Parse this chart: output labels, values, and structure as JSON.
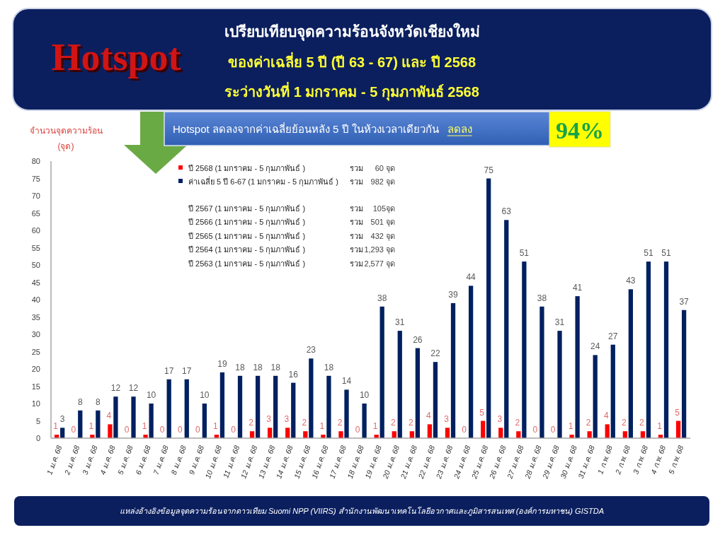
{
  "chart_data": {
    "type": "bar",
    "title": "เปรียบเทียบจุดความร้อนจังหวัดเชียงใหม่",
    "subtitle": "ของค่าเฉลี่ย 5 ปี (ปี 63 - 67) และ ปี 2568\nระว่างวันที่ 1 มกราคม - 5 กุมภาพันธ์ 2568",
    "ylabel": "จำนวนจุดความร้อน\n(จุด)",
    "categories": [
      "1 ม.ค. 68",
      "2 ม.ค. 68",
      "3 ม.ค. 68",
      "4 ม.ค. 68",
      "5 ม.ค. 68",
      "6 ม.ค. 68",
      "7 ม.ค. 68",
      "8 ม.ค. 68",
      "9 ม.ค. 68",
      "10 ม.ค. 68",
      "11 ม.ค. 68",
      "12 ม.ค. 68",
      "13 ม.ค. 68",
      "14 ม.ค. 68",
      "15 ม.ค. 68",
      "16 ม.ค. 68",
      "17 ม.ค. 68",
      "18 ม.ค. 68",
      "19 ม.ค. 68",
      "20 ม.ค. 68",
      "21 ม.ค. 68",
      "22 ม.ค. 68",
      "23 ม.ค. 68",
      "24 ม.ค. 68",
      "25 ม.ค. 68",
      "26 ม.ค. 68",
      "27 ม.ค. 68",
      "28 ม.ค. 68",
      "29 ม.ค. 68",
      "30 ม.ค. 68",
      "31 ม.ค. 68",
      "1 ก.พ. 68",
      "2 ก.พ. 68",
      "3 ก.พ. 68",
      "4 ก.พ. 68",
      "5 ก.พ. 68"
    ],
    "series": [
      {
        "name": "ปี 2568 (1 มกราคม - 5 กุมภาพันธ์ )",
        "color": "#ff0000",
        "values": [
          1,
          0,
          1,
          4,
          0,
          1,
          0,
          0,
          0,
          1,
          0,
          2,
          3,
          3,
          2,
          1,
          2,
          0,
          1,
          2,
          2,
          4,
          3,
          0,
          5,
          3,
          2,
          0,
          0,
          1,
          2,
          4,
          2,
          2,
          1,
          5
        ]
      },
      {
        "name": "ค่าเฉลี่ย 5 ปี 6-67 (1 มกราคม - 5 กุมภาพันธ์ )",
        "color": "#002060",
        "values": [
          3,
          8,
          8,
          12,
          12,
          10,
          17,
          17,
          10,
          19,
          18,
          18,
          18,
          16,
          23,
          18,
          14,
          10,
          38,
          31,
          26,
          22,
          39,
          44,
          75,
          63,
          51,
          38,
          31,
          41,
          24,
          27,
          43,
          51,
          51,
          37
        ]
      }
    ],
    "ylim": [
      0,
      80
    ],
    "yticks": [
      0,
      5,
      10,
      15,
      20,
      25,
      30,
      35,
      40,
      45,
      50,
      55,
      60,
      65,
      70,
      75,
      80
    ],
    "data_labels": true,
    "legend": "top left",
    "annotations": [
      "Hotspot",
      "Hotspot ลดลงจากค่าเฉลี่ยย้อนหลัง 5 ปี ในห้วงเวลาเดียวกัน",
      "ลดลง",
      "94%",
      "รวม",
      "60 จุด",
      "รวม",
      "982 จุด",
      "ปี 2567 (1 มกราคม - 5 กุมภาพันธ์ )",
      "รวม",
      "105จุด",
      "ปี 2566 (1 มกราคม - 5 กุมภาพันธ์ )",
      "รวม",
      "501 จุด",
      "ปี 2565 (1 มกราคม - 5 กุมภาพันธ์ )",
      "รวม",
      "432 จุด",
      "ปี 2564 (1 มกราคม - 5 กุมภาพันธ์ )",
      "รวม",
      "1,293 จุด",
      "ปี 2563 (1 มกราคม - 5 กุมภาพันธ์ )",
      "รวม",
      "2,577 จุด",
      "แหล่งอ้างอิงข้อมูลจุดความร้อนจากดาวเทียม Suomi NPP (VIIRS) สำนักงานพัฒนาเทคโนโลยีอวกาศและภูมิสารสนเทศ (องค์การมหาชน) GISTDA"
    ]
  }
}
